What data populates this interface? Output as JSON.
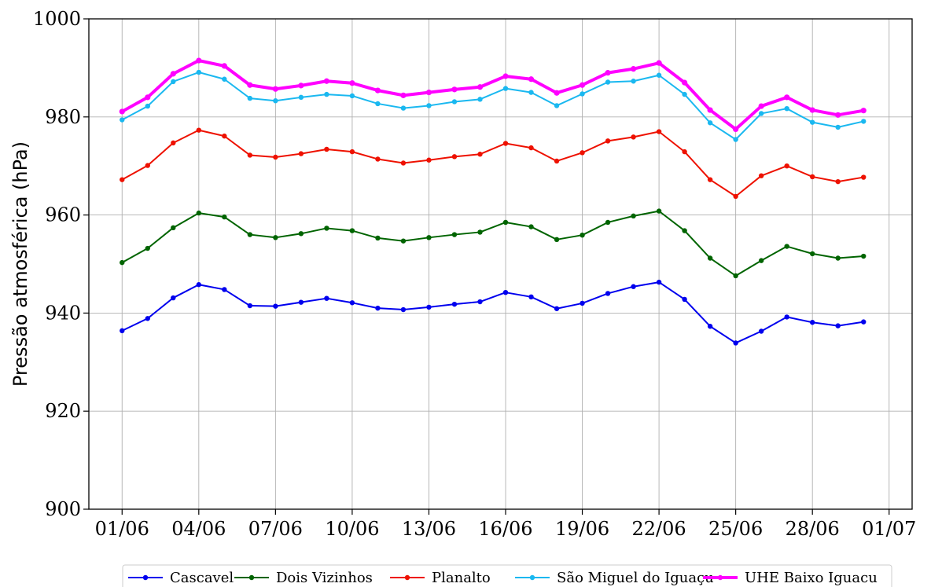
{
  "chart_data": {
    "type": "line",
    "title": "",
    "xlabel": "",
    "ylabel": "Pressão atmosférica (hPa)",
    "ylim": [
      900,
      1000
    ],
    "yticks": [
      900,
      920,
      940,
      960,
      980,
      1000
    ],
    "ytick_labels": [
      "900",
      "920",
      "940",
      "960",
      "980",
      "1000"
    ],
    "xlim": [
      -1.3,
      30.9
    ],
    "xticks": [
      0,
      3,
      6,
      9,
      12,
      15,
      18,
      21,
      24,
      27,
      30
    ],
    "xtick_labels": [
      "01/06",
      "04/06",
      "07/06",
      "10/06",
      "13/06",
      "16/06",
      "19/06",
      "22/06",
      "25/06",
      "28/06",
      "01/07"
    ],
    "grid": true,
    "legend_position": "bottom-center",
    "x": [
      "01/06",
      "02/06",
      "03/06",
      "04/06",
      "05/06",
      "06/06",
      "07/06",
      "08/06",
      "09/06",
      "10/06",
      "11/06",
      "12/06",
      "13/06",
      "14/06",
      "15/06",
      "16/06",
      "17/06",
      "18/06",
      "19/06",
      "20/06",
      "21/06",
      "22/06",
      "23/06",
      "24/06",
      "25/06",
      "26/06",
      "27/06",
      "28/06",
      "29/06",
      "30/06"
    ],
    "series": [
      {
        "name": "Cascavel",
        "color": "#0000ee",
        "linewidth": 2,
        "values": [
          936.4,
          938.9,
          943.1,
          945.8,
          944.8,
          941.5,
          941.4,
          942.2,
          943.0,
          942.1,
          941.0,
          940.7,
          941.2,
          941.8,
          942.3,
          944.2,
          943.3,
          940.9,
          942.0,
          944.0,
          945.4,
          946.3,
          942.8,
          937.3,
          933.9,
          936.3,
          939.2,
          938.1,
          937.4,
          938.2
        ]
      },
      {
        "name": "Dois Vizinhos",
        "color": "#006400",
        "linewidth": 2,
        "values": [
          950.3,
          953.2,
          957.4,
          960.4,
          959.6,
          956.0,
          955.4,
          956.2,
          957.3,
          956.8,
          955.3,
          954.7,
          955.4,
          956.0,
          956.5,
          958.5,
          957.6,
          955.0,
          955.9,
          958.5,
          959.8,
          960.8,
          956.8,
          951.2,
          947.6,
          950.7,
          953.6,
          952.1,
          951.2,
          951.6
        ]
      },
      {
        "name": "Planalto",
        "color": "#ee1100",
        "linewidth": 2,
        "values": [
          967.2,
          970.1,
          974.7,
          977.3,
          976.1,
          972.2,
          971.8,
          972.5,
          973.4,
          972.9,
          971.4,
          970.6,
          971.2,
          971.9,
          972.4,
          974.6,
          973.7,
          971.0,
          972.7,
          975.1,
          975.9,
          977.0,
          972.9,
          967.2,
          963.8,
          968.0,
          970.0,
          967.8,
          966.8,
          967.7
        ]
      },
      {
        "name": "São Miguel do Iguaçu",
        "color": "#1ab8f0",
        "linewidth": 2,
        "values": [
          979.4,
          982.2,
          987.2,
          989.1,
          987.7,
          983.8,
          983.3,
          984.0,
          984.6,
          984.3,
          982.7,
          981.8,
          982.3,
          983.1,
          983.6,
          985.8,
          985.0,
          982.3,
          984.7,
          987.1,
          987.3,
          988.5,
          984.6,
          978.8,
          975.4,
          980.7,
          981.7,
          978.9,
          977.9,
          979.1
        ]
      },
      {
        "name": "UHE Baixo Iguacu",
        "color": "#ff00ff",
        "linewidth": 4,
        "values": [
          981.1,
          984.0,
          988.8,
          991.5,
          990.4,
          986.5,
          985.7,
          986.4,
          987.3,
          986.9,
          985.4,
          984.4,
          985.0,
          985.6,
          986.1,
          988.3,
          987.7,
          984.9,
          986.5,
          989.0,
          989.8,
          991.0,
          987.0,
          981.4,
          977.5,
          982.2,
          984.0,
          981.4,
          980.4,
          981.3
        ]
      }
    ]
  }
}
